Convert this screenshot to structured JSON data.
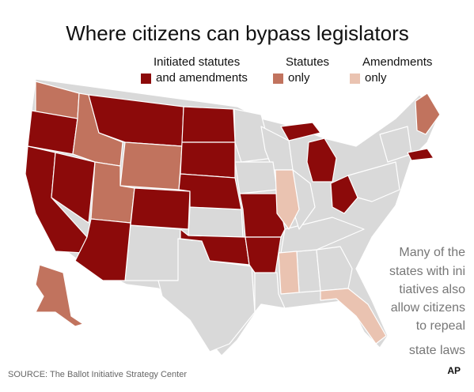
{
  "header": {
    "title": "Where citizens can bypass legislators"
  },
  "legend": [
    {
      "lines": [
        "Initiated statutes",
        "and amendments"
      ],
      "color": "#8c0a0a"
    },
    {
      "lines": [
        "Statutes",
        "only"
      ],
      "color": "#c1735e"
    },
    {
      "lines": [
        "Amendments",
        "only"
      ],
      "color": "#eac3b1"
    }
  ],
  "map": {
    "other_color": "#d9d9d9"
  },
  "annotation": {
    "lines": [
      "Many of the",
      "states with ini",
      "tiatives also",
      "allow citizens",
      "to repeal",
      "state laws"
    ]
  },
  "footer": {
    "source": "SOURCE: The Ballot Initiative Strategy Center",
    "logo": "AP"
  }
}
